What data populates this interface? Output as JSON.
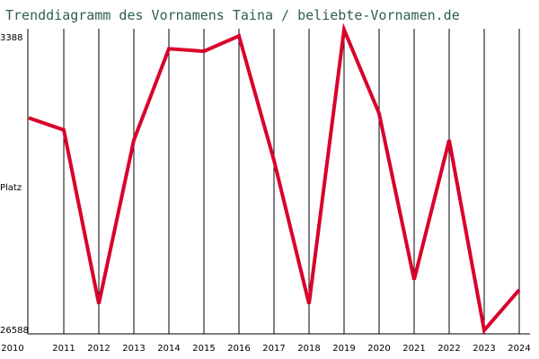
{
  "chart_data": {
    "type": "line",
    "title": "Trenddiagramm des Vornamens Taina / beliebte-Vornamen.de",
    "ylabel": "Platz",
    "y_inverted": true,
    "ylim": [
      3388,
      26588
    ],
    "y_ticks": [
      "3388",
      "26588"
    ],
    "x": [
      "2010",
      "2011",
      "2012",
      "2013",
      "2014",
      "2015",
      "2016",
      "2017",
      "2018",
      "2019",
      "2020",
      "2021",
      "2022",
      "2023",
      "2024"
    ],
    "series": [
      {
        "values": [
          9850,
          10800,
          24500,
          11600,
          4400,
          4600,
          3388,
          13200,
          24500,
          2900,
          9500,
          22600,
          11600,
          26588,
          23400
        ]
      }
    ],
    "grid": "vertical lines at each year",
    "line_color": "#d9002b",
    "title_color": "#2e5e53"
  }
}
